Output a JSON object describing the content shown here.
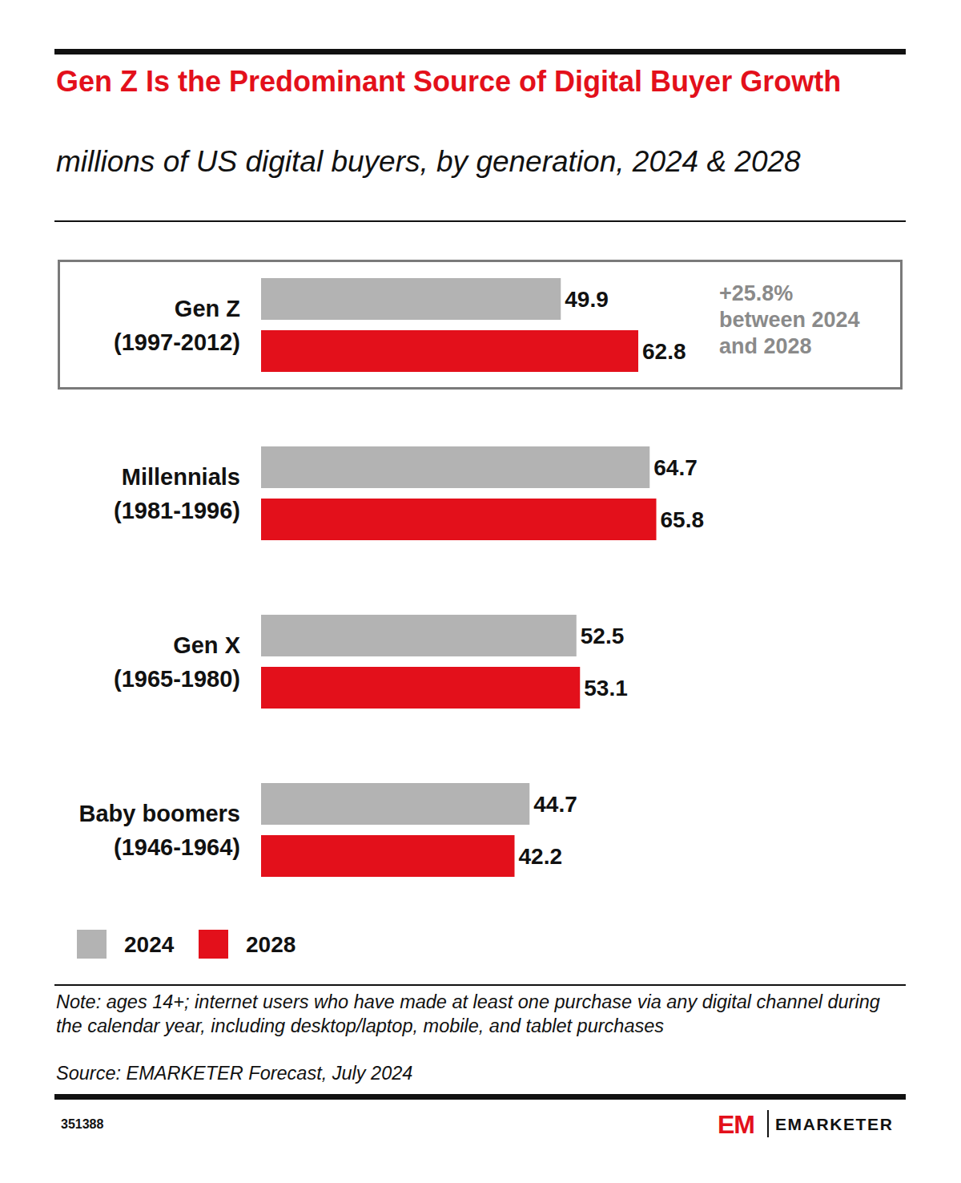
{
  "chart_data": {
    "type": "bar",
    "orientation": "horizontal",
    "title": "Gen Z Is the Predominant Source of Digital Buyer Growth",
    "subtitle": "millions of US digital buyers, by generation, 2024 & 2028",
    "categories": [
      "Gen Z (1997-2012)",
      "Millennials (1981-1996)",
      "Gen X (1965-1980)",
      "Baby boomers (1946-1964)"
    ],
    "series": [
      {
        "name": "2024",
        "color": "#b3b3b3",
        "values": [
          49.9,
          64.7,
          52.5,
          44.7
        ]
      },
      {
        "name": "2028",
        "color": "#e3101b",
        "values": [
          62.8,
          65.8,
          53.1,
          42.2
        ]
      }
    ],
    "xlim": [
      0,
      100
    ],
    "tick_labels": false,
    "grid": false,
    "data_labels": true,
    "legend": "bottom-left",
    "annotation": [
      "+25.8%",
      "between 2024",
      "and 2028"
    ],
    "note": "Note: ages 14+; internet users who have made at least one purchase via any digital channel during the calendar year, including desktop/laptop, mobile, and tablet purchases",
    "source": "Source: EMARKETER Forecast, July 2024",
    "chart_id": "351388",
    "logo_mark": "EM",
    "logo": "EMARKETER"
  }
}
